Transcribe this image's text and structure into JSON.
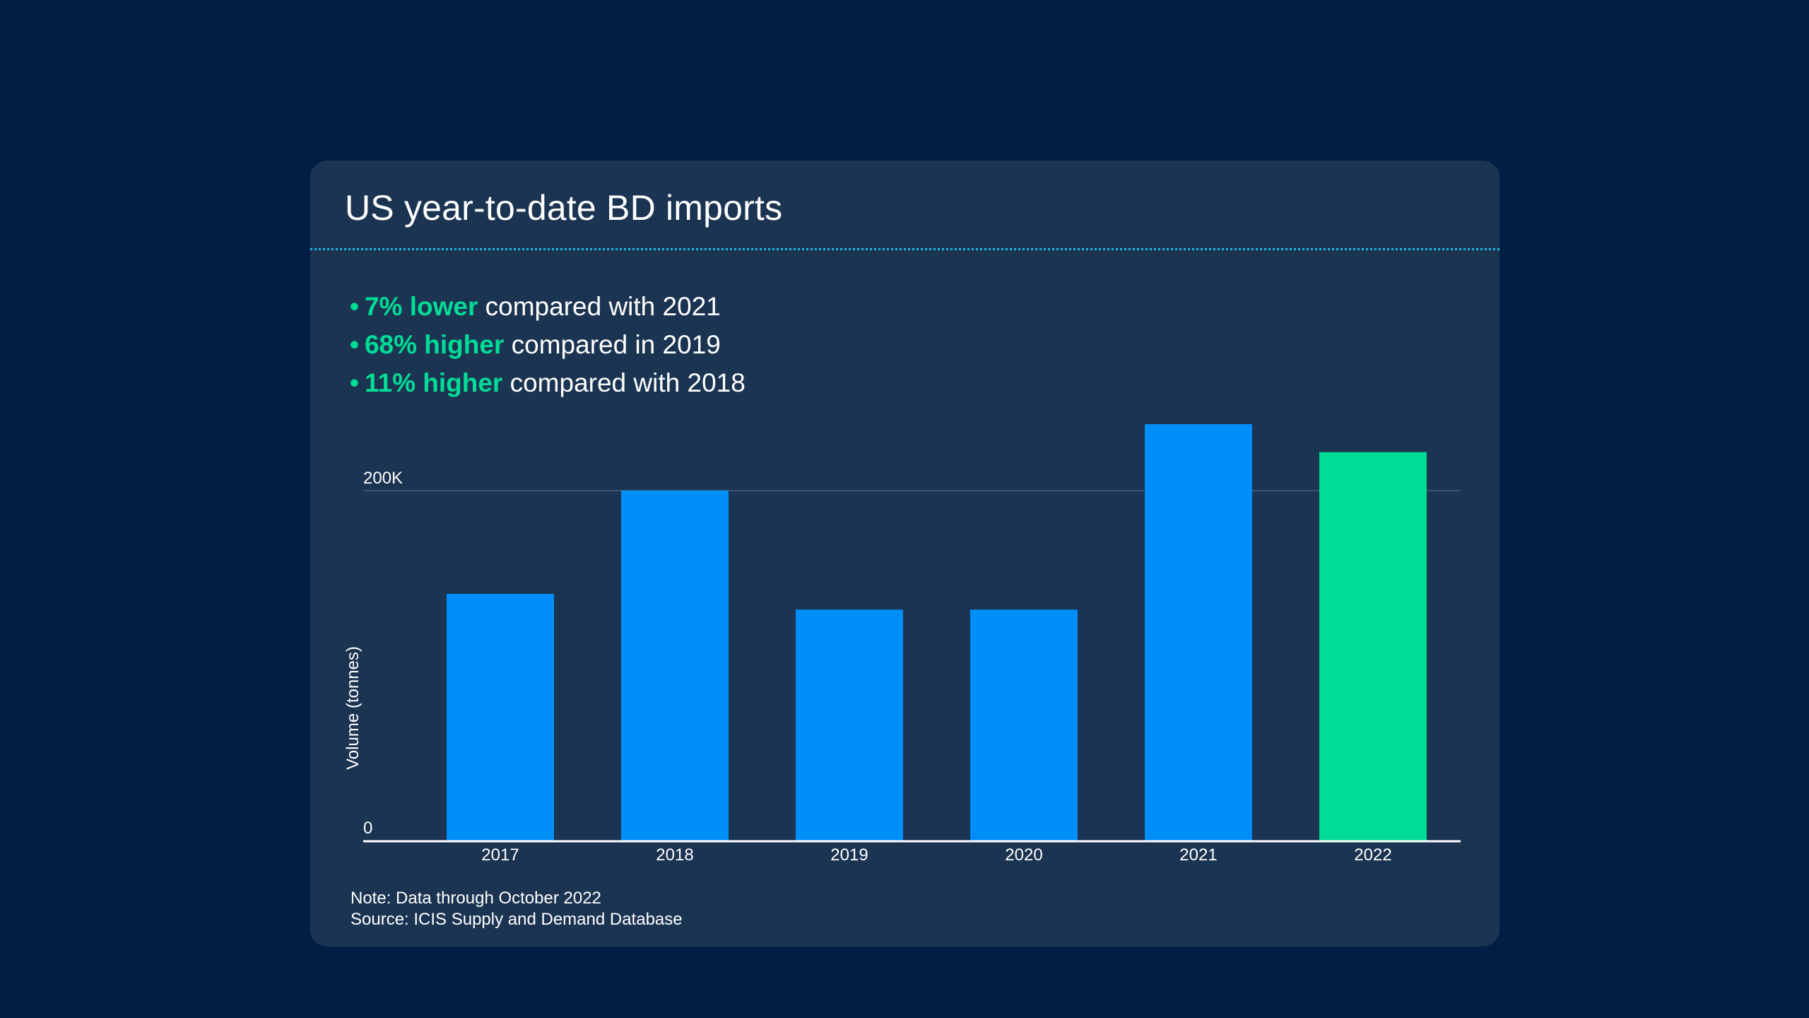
{
  "header": {
    "title": "US year-to-date BD imports"
  },
  "bullets": [
    {
      "highlight": "7% lower",
      "text": " compared with 2021"
    },
    {
      "highlight": "68% higher",
      "text": " compared in 2019"
    },
    {
      "highlight": "11% higher",
      "text": " compared with 2018"
    }
  ],
  "footer": {
    "note": "Note: Data through October 2022",
    "source": "Source: ICIS Supply and Demand Database"
  },
  "colors": {
    "background": "#001f42",
    "card": "#1b3452",
    "bar": "#008ff8",
    "highlight_bar": "#00dc96",
    "accent_text": "#00dc96",
    "separator": "#1fb8e8"
  },
  "chart_data": {
    "type": "bar",
    "title": "US year-to-date BD imports",
    "xlabel": "",
    "ylabel": "Volume (tonnes)",
    "categories": [
      "2017",
      "2018",
      "2019",
      "2020",
      "2021",
      "2022"
    ],
    "values": [
      141000,
      200000,
      132000,
      132000,
      238000,
      222000
    ],
    "highlight_category": "2022",
    "ylim": [
      0,
      200000
    ],
    "yticks": [
      0,
      200000
    ],
    "ytick_labels": [
      "0",
      "200K"
    ],
    "grid": true,
    "legend": "none"
  }
}
